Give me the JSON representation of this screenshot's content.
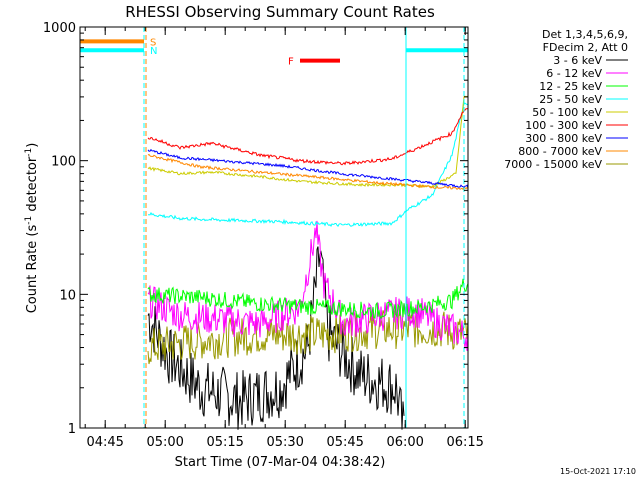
{
  "chart_data": {
    "type": "line",
    "title": "RHESSI Observing Summary Count Rates",
    "xlabel": "Start Time (07-Mar-04 04:38:42)",
    "ylabel_main": "Count Rate (s",
    "ylabel_sup1": "-1",
    "ylabel_mid": " detector",
    "ylabel_sup2": "-1",
    "ylabel_end": ")",
    "yscale": "log",
    "ylim": [
      1,
      1000
    ],
    "xlim_minutes": [
      0,
      97
    ],
    "x_ticks": [
      {
        "label": "04:45",
        "minute": 6.3
      },
      {
        "label": "05:00",
        "minute": 21.3
      },
      {
        "label": "05:15",
        "minute": 36.3
      },
      {
        "label": "05:30",
        "minute": 51.3
      },
      {
        "label": "05:45",
        "minute": 66.3
      },
      {
        "label": "06:00",
        "minute": 81.3
      },
      {
        "label": "06:15",
        "minute": 96.3
      }
    ],
    "y_ticks": [
      {
        "label": "1",
        "value": 1
      },
      {
        "label": "10",
        "value": 10
      },
      {
        "label": "100",
        "value": 100
      },
      {
        "label": "1000",
        "value": 1000
      }
    ],
    "legend_header": [
      "Det 1,3,4,5,6,9,",
      "FDecim 2, Att 0"
    ],
    "legend_position": "right",
    "series": [
      {
        "name": "3 - 6 keV",
        "color": "#000000"
      },
      {
        "name": "6 - 12 keV",
        "color": "#ff00ff"
      },
      {
        "name": "12 - 25 keV",
        "color": "#00ff00"
      },
      {
        "name": "25 - 50 keV",
        "color": "#00ffff"
      },
      {
        "name": "50 - 100 keV",
        "color": "#cccc00"
      },
      {
        "name": "100 - 300 keV",
        "color": "#ff0000"
      },
      {
        "name": "300 - 800 keV",
        "color": "#0000ff"
      },
      {
        "name": "800 - 7000 keV",
        "color": "#ff8800"
      },
      {
        "name": "7000 - 15000 keV",
        "color": "#999900"
      }
    ],
    "flags": [
      {
        "letter": "S",
        "color": "#ff8800",
        "value": 780,
        "x_start_minute": 0,
        "x_end_minute": 16
      },
      {
        "letter": "N",
        "color": "#00ffff",
        "value": 670,
        "x_start_minute": 0,
        "x_end_minute": 16
      },
      {
        "letter": "F",
        "color": "#ff0000",
        "value": 560,
        "x_start_minute": 55,
        "x_end_minute": 65
      }
    ],
    "right_flag_bars": [
      {
        "color": "#00ffff",
        "value": 670,
        "x_start_minute": 81.5,
        "x_end_minute": 97
      }
    ],
    "vertical_markers": [
      {
        "color": "#00ffff",
        "minute": 0,
        "style": "solid"
      },
      {
        "color": "#00ffff",
        "minute": 16,
        "style": "dashed"
      },
      {
        "color": "#ff8800",
        "minute": 16.5,
        "style": "dashed"
      },
      {
        "color": "#00ffff",
        "minute": 81.5,
        "style": "solid"
      },
      {
        "color": "#00ffff",
        "minute": 96,
        "style": "dashed"
      }
    ],
    "footer_date": "15-Oct-2021 17:10"
  }
}
